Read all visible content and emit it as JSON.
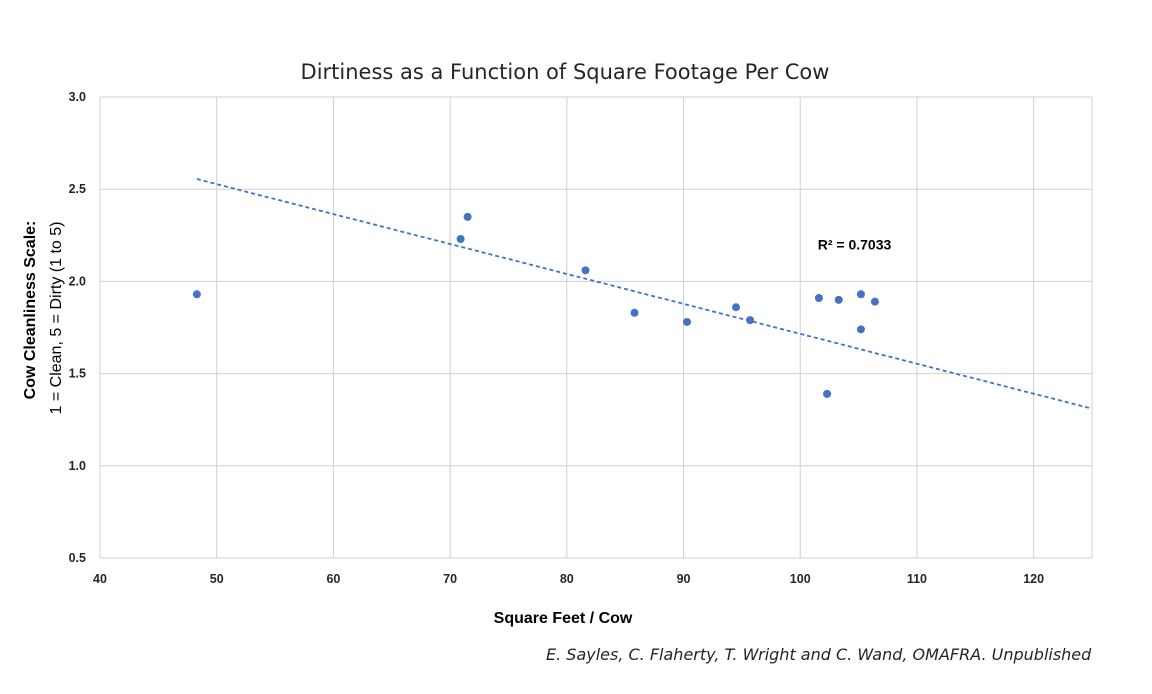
{
  "chart_data": {
    "type": "scatter",
    "title": "Dirtiness as a Function of Square Footage Per Cow",
    "xlabel": "Square Feet / Cow",
    "ylabel_line1": "Cow Cleanliness Scale:",
    "ylabel_line2": "1 = Clean, 5 = Dirty (1 to 5)",
    "xlim": [
      40,
      125
    ],
    "ylim": [
      0.5,
      3.0
    ],
    "xticks": [
      40,
      50,
      60,
      70,
      80,
      90,
      100,
      110,
      120
    ],
    "yticks": [
      "0.5",
      "1.0",
      "1.5",
      "2.0",
      "2.5",
      "3.0"
    ],
    "grid": true,
    "marker_color": "#4472C4",
    "trendline_color": "#4472C4",
    "points": [
      {
        "x": 48.3,
        "y": 1.93
      },
      {
        "x": 70.9,
        "y": 2.23
      },
      {
        "x": 71.5,
        "y": 2.35
      },
      {
        "x": 81.6,
        "y": 2.06
      },
      {
        "x": 85.8,
        "y": 1.83
      },
      {
        "x": 90.3,
        "y": 1.78
      },
      {
        "x": 94.5,
        "y": 1.86
      },
      {
        "x": 95.7,
        "y": 1.79
      },
      {
        "x": 101.6,
        "y": 1.91
      },
      {
        "x": 102.3,
        "y": 1.39
      },
      {
        "x": 103.3,
        "y": 1.9
      },
      {
        "x": 105.2,
        "y": 1.93
      },
      {
        "x": 105.2,
        "y": 1.74
      },
      {
        "x": 106.4,
        "y": 1.89
      }
    ],
    "trendline": {
      "x1": 48.3,
      "y1": 2.555,
      "x2": 125,
      "y2": 1.31
    },
    "annotation": {
      "text": "R² = 0.7033",
      "x": 101.5,
      "y": 2.2
    }
  },
  "credit": "E. Sayles, C. Flaherty, T. Wright and C. Wand, OMAFRA.  Unpublished"
}
